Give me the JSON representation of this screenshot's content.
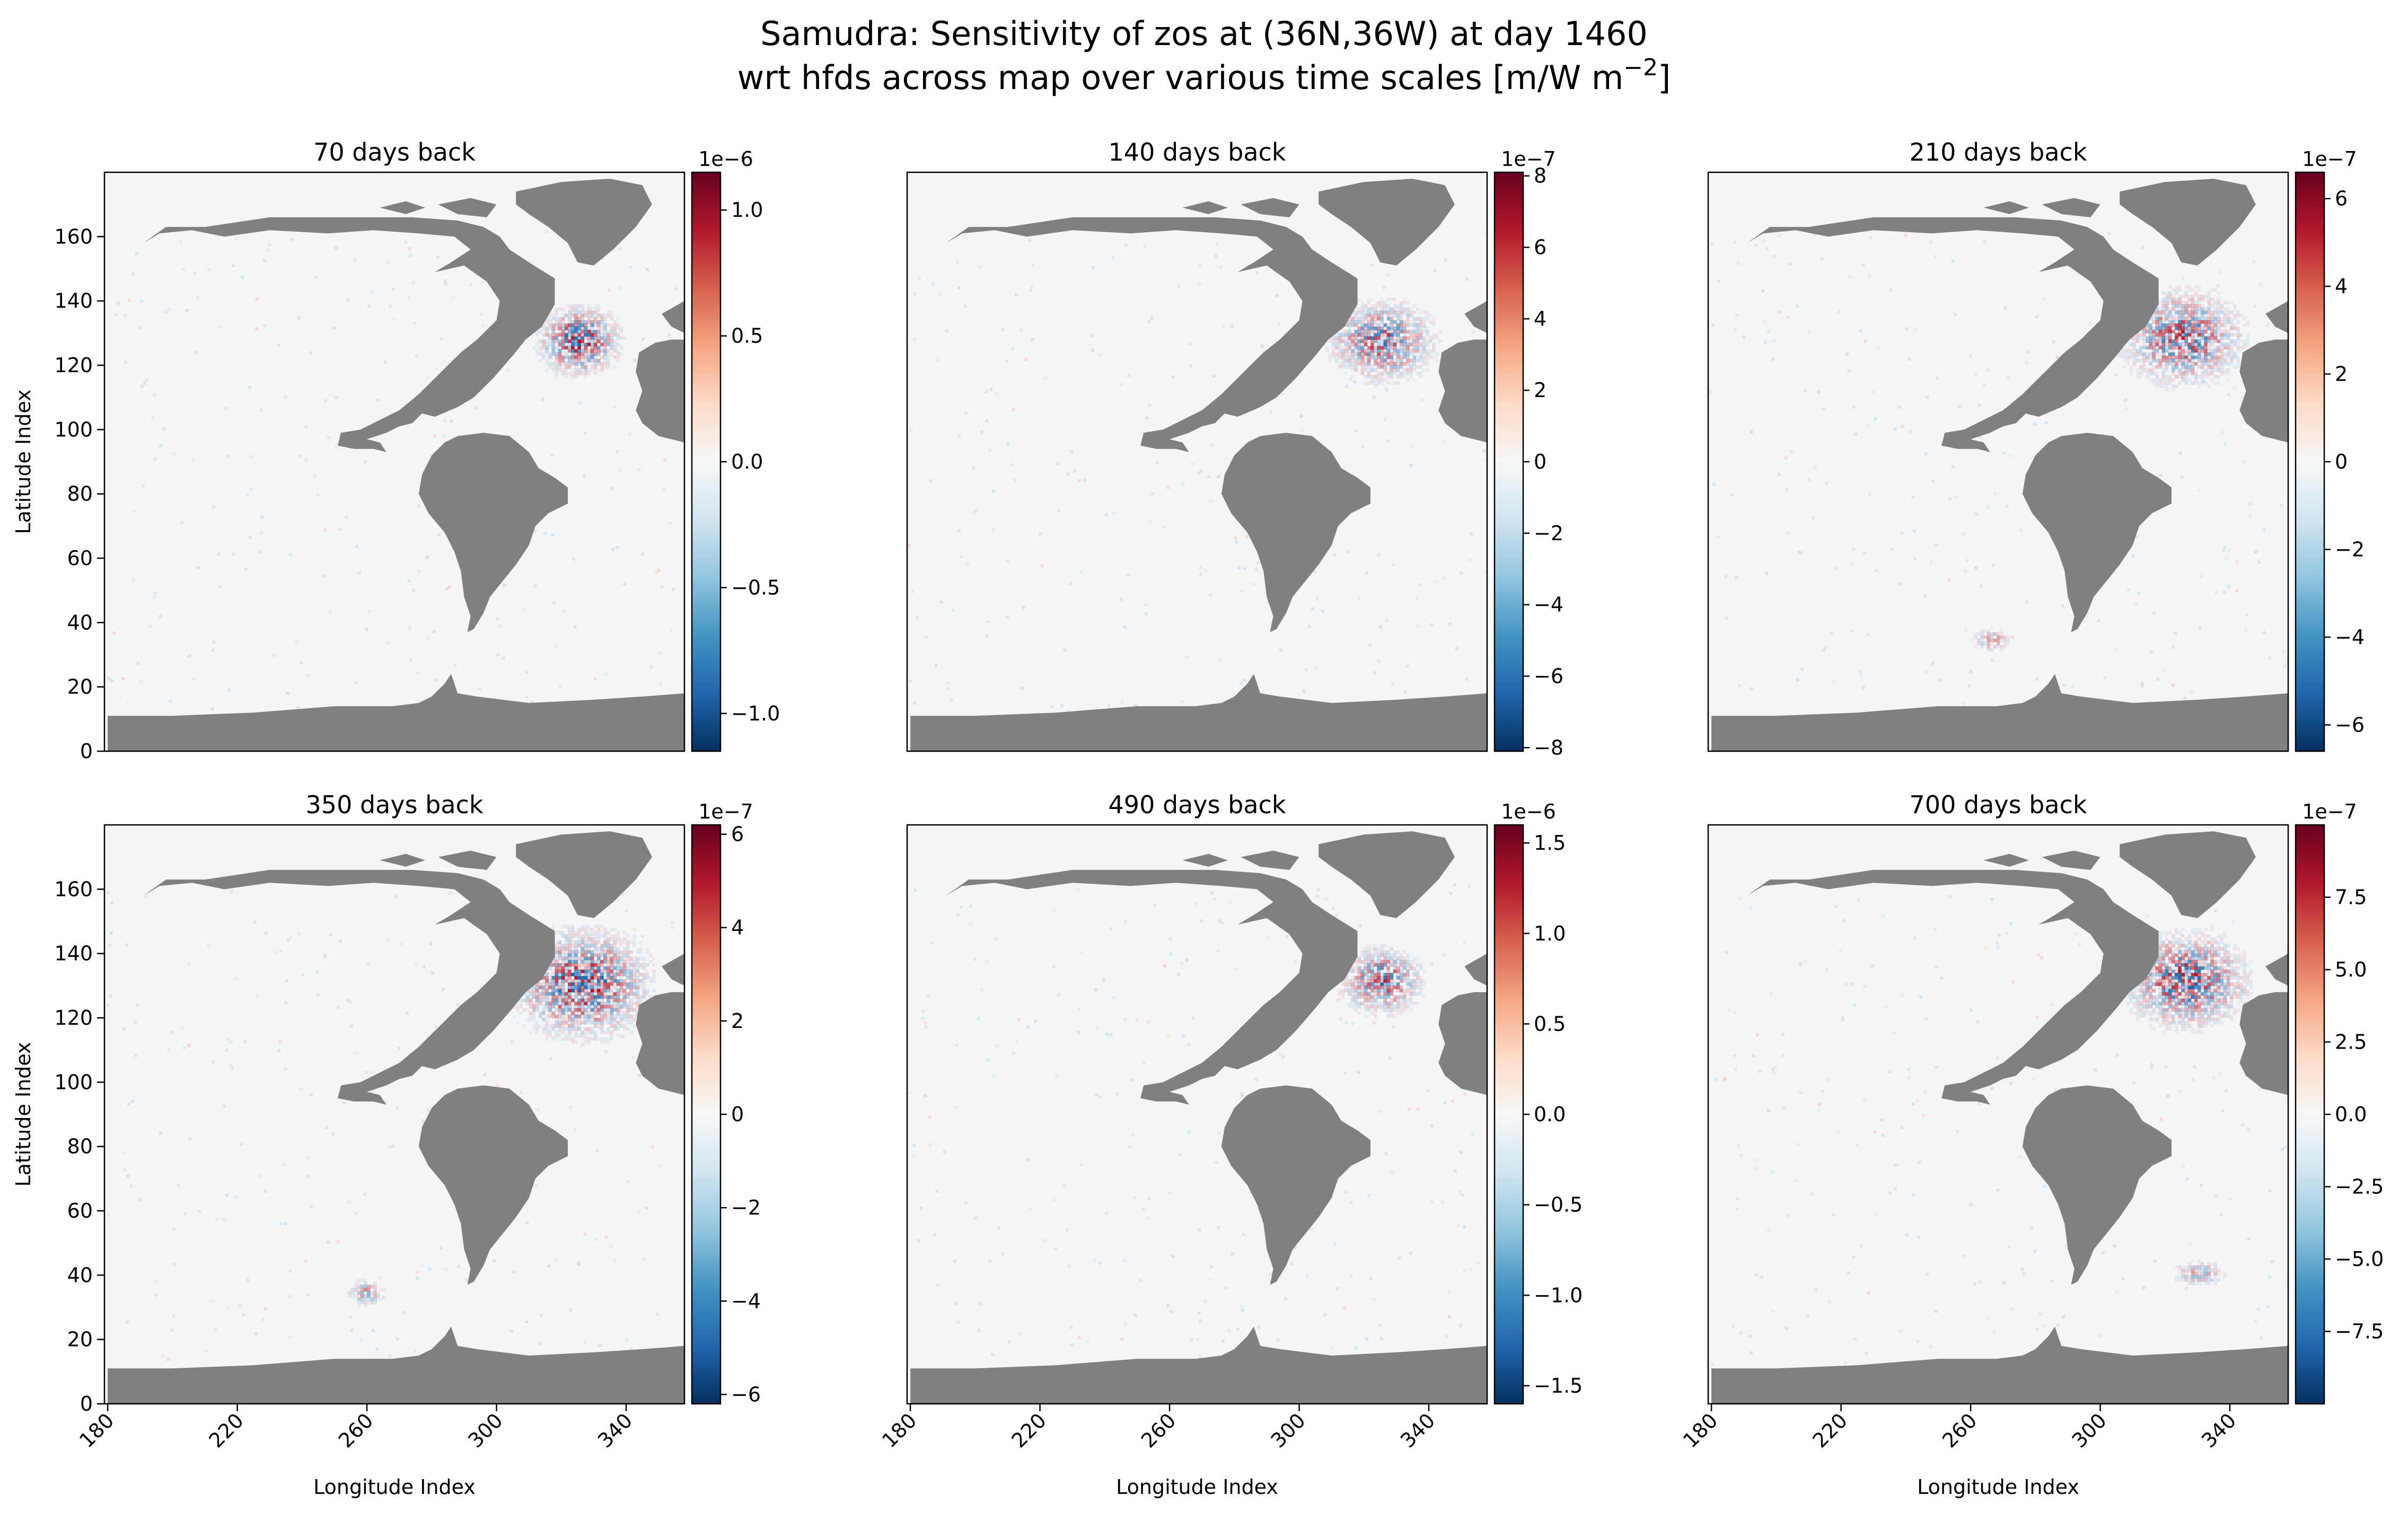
{
  "figure": {
    "title_line1": "Samudra: Sensitivity of zos at (36N,36W) at day 1460",
    "title_line2_prefix": "wrt hfds across map over various time scales [m/W m",
    "title_line2_sup": "−2",
    "title_line2_suffix": "]"
  },
  "colors": {
    "land": "#808080",
    "ocean": "#f4f5f7",
    "cmap": "RdBu_r",
    "cmap_stops": [
      "#053061",
      "#2166ac",
      "#4393c3",
      "#92c5de",
      "#d1e5f0",
      "#f7f7f7",
      "#fddbc7",
      "#f4a582",
      "#d6604d",
      "#b2182b",
      "#67001f"
    ]
  },
  "axis_labels": {
    "x": "Longitude Index",
    "y": "Latitude Index"
  },
  "chart_data": [
    {
      "type": "heatmap",
      "title": "70 days back",
      "x_range": [
        179,
        358
      ],
      "y_range": [
        0,
        180
      ],
      "x_ticks": [
        "180",
        "220",
        "260",
        "300",
        "340"
      ],
      "y_ticks": [
        "0",
        "20",
        "40",
        "60",
        "80",
        "100",
        "120",
        "140",
        "160"
      ],
      "hotspots": [
        {
          "x": 325,
          "y": 127,
          "lon_spread": 6,
          "lat_spread": 5,
          "strength": 1.0
        }
      ],
      "colorbar": {
        "exponent": "1e−6",
        "min": -1.15,
        "max": 1.15,
        "ticks": [
          "−1.0",
          "−0.5",
          "0.0",
          "0.5",
          "1.0"
        ],
        "tick_values": [
          -1.0,
          -0.5,
          0.0,
          0.5,
          1.0
        ]
      }
    },
    {
      "type": "heatmap",
      "title": "140 days back",
      "x_range": [
        179,
        358
      ],
      "y_range": [
        0,
        180
      ],
      "x_ticks": [
        "180",
        "220",
        "260",
        "300",
        "340"
      ],
      "y_ticks": [
        "0",
        "20",
        "40",
        "60",
        "80",
        "100",
        "120",
        "140",
        "160"
      ],
      "hotspots": [
        {
          "x": 325,
          "y": 127,
          "lon_spread": 8,
          "lat_spread": 6,
          "strength": 0.75
        }
      ],
      "colorbar": {
        "exponent": "1e−7",
        "min": -8.1,
        "max": 8.1,
        "ticks": [
          "−8",
          "−6",
          "−4",
          "−2",
          "0",
          "2",
          "4",
          "6",
          "8"
        ],
        "tick_values": [
          -8,
          -6,
          -4,
          -2,
          0,
          2,
          4,
          6,
          8
        ]
      }
    },
    {
      "type": "heatmap",
      "title": "210 days back",
      "x_range": [
        179,
        358
      ],
      "y_range": [
        0,
        180
      ],
      "x_ticks": [
        "180",
        "220",
        "260",
        "300",
        "340"
      ],
      "y_ticks": [
        "0",
        "20",
        "40",
        "60",
        "80",
        "100",
        "120",
        "140",
        "160"
      ],
      "hotspots": [
        {
          "x": 325,
          "y": 128,
          "lon_spread": 9,
          "lat_spread": 7,
          "strength": 0.8
        },
        {
          "x": 266,
          "y": 34,
          "lon_spread": 3,
          "lat_spread": 2,
          "strength": 0.35
        }
      ],
      "colorbar": {
        "exponent": "1e−7",
        "min": -6.6,
        "max": 6.6,
        "ticks": [
          "−6",
          "−4",
          "−2",
          "0",
          "2",
          "4",
          "6"
        ],
        "tick_values": [
          -6,
          -4,
          -2,
          0,
          2,
          4,
          6
        ]
      }
    },
    {
      "type": "heatmap",
      "title": "350 days back",
      "x_range": [
        179,
        358
      ],
      "y_range": [
        0,
        180
      ],
      "x_ticks": [
        "180",
        "220",
        "260",
        "300",
        "340"
      ],
      "y_ticks": [
        "0",
        "20",
        "40",
        "60",
        "80",
        "100",
        "120",
        "140",
        "160"
      ],
      "hotspots": [
        {
          "x": 326,
          "y": 130,
          "lon_spread": 10,
          "lat_spread": 8,
          "strength": 0.95
        },
        {
          "x": 259,
          "y": 34,
          "lon_spread": 3,
          "lat_spread": 2,
          "strength": 0.45
        }
      ],
      "colorbar": {
        "exponent": "1e−7",
        "min": -6.2,
        "max": 6.2,
        "ticks": [
          "−6",
          "−4",
          "−2",
          "0",
          "2",
          "4",
          "6"
        ],
        "tick_values": [
          -6,
          -4,
          -2,
          0,
          2,
          4,
          6
        ]
      }
    },
    {
      "type": "heatmap",
      "title": "490 days back",
      "x_range": [
        179,
        358
      ],
      "y_range": [
        0,
        180
      ],
      "x_ticks": [
        "180",
        "220",
        "260",
        "300",
        "340"
      ],
      "y_ticks": [
        "0",
        "20",
        "40",
        "60",
        "80",
        "100",
        "120",
        "140",
        "160"
      ],
      "hotspots": [
        {
          "x": 325,
          "y": 131,
          "lon_spread": 6,
          "lat_spread": 5,
          "strength": 0.8
        }
      ],
      "colorbar": {
        "exponent": "1e−6",
        "min": -1.6,
        "max": 1.6,
        "ticks": [
          "−1.5",
          "−1.0",
          "−0.5",
          "0.0",
          "0.5",
          "1.0",
          "1.5"
        ],
        "tick_values": [
          -1.5,
          -1.0,
          -0.5,
          0.0,
          0.5,
          1.0,
          1.5
        ]
      }
    },
    {
      "type": "heatmap",
      "title": "700 days back",
      "x_range": [
        179,
        358
      ],
      "y_range": [
        0,
        180
      ],
      "x_ticks": [
        "180",
        "220",
        "260",
        "300",
        "340"
      ],
      "y_ticks": [
        "0",
        "20",
        "40",
        "60",
        "80",
        "100",
        "120",
        "140",
        "160"
      ],
      "hotspots": [
        {
          "x": 326,
          "y": 131,
          "lon_spread": 9,
          "lat_spread": 7,
          "strength": 0.9
        },
        {
          "x": 330,
          "y": 40,
          "lon_spread": 4,
          "lat_spread": 2,
          "strength": 0.4
        }
      ],
      "colorbar": {
        "exponent": "1e−7",
        "min": -10.0,
        "max": 10.0,
        "ticks": [
          "−7.5",
          "−5.0",
          "−2.5",
          "0.0",
          "2.5",
          "5.0",
          "7.5"
        ],
        "tick_values": [
          -7.5,
          -5.0,
          -2.5,
          0.0,
          2.5,
          5.0,
          7.5
        ]
      }
    }
  ]
}
